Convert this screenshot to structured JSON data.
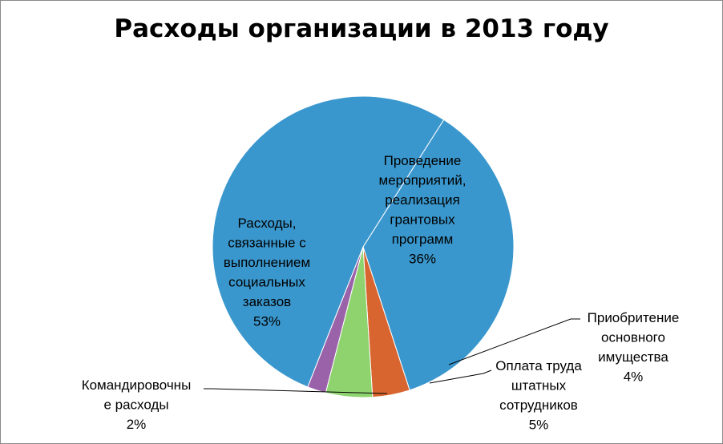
{
  "chart_data": {
    "type": "pie",
    "title": "Расходы организации в 2013 году",
    "slices": [
      {
        "label_lines": [
          "Проведение",
          "мероприятий,",
          "реализация",
          "грантовых",
          "программ"
        ],
        "value": 36,
        "value_label": "36%",
        "color": "#3a97cd"
      },
      {
        "label_lines": [
          "Приобритение",
          "основного",
          "имущества"
        ],
        "value": 4,
        "value_label": "4%",
        "color": "#d8652f"
      },
      {
        "label_lines": [
          "Оплата труда",
          "штатных",
          "сотрудников"
        ],
        "value": 5,
        "value_label": "5%",
        "color": "#8fd36f"
      },
      {
        "label_lines": [
          "Командировочны",
          "е расходы"
        ],
        "value": 2,
        "value_label": "2%",
        "color": "#9a63a9"
      },
      {
        "label_lines": [
          "Расходы,",
          "связанные с",
          "выполнением",
          "социальных",
          "заказов"
        ],
        "value": 53,
        "value_label": "53%",
        "color": "#3a97cd"
      }
    ]
  }
}
